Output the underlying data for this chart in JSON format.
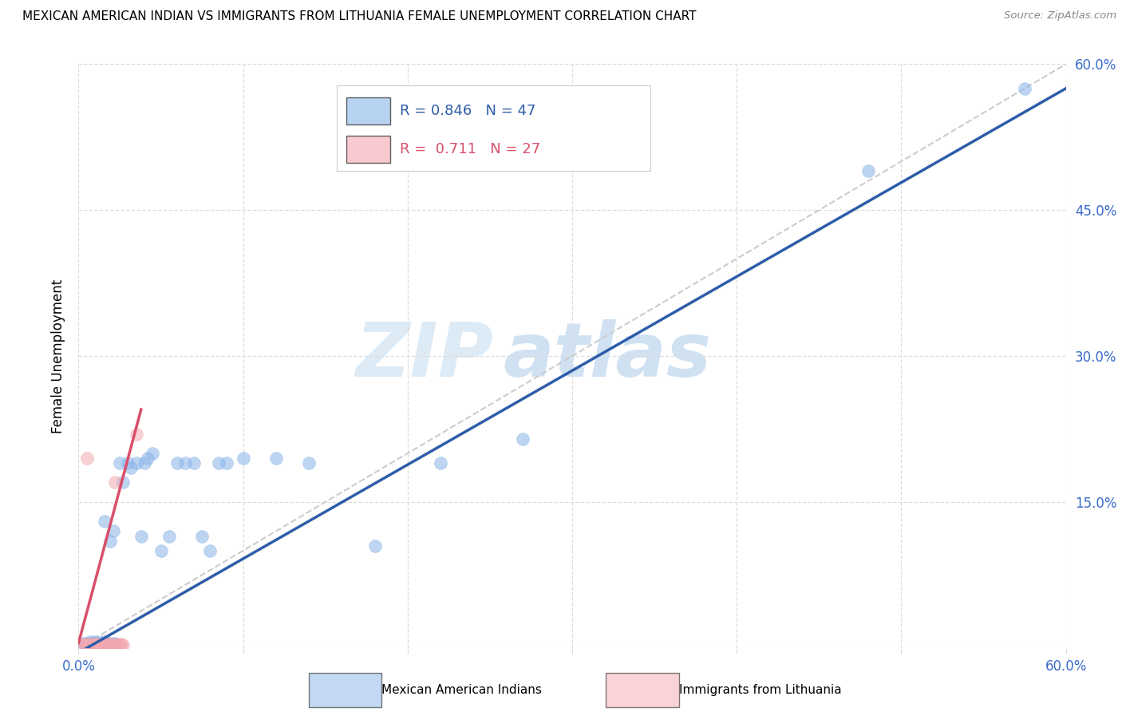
{
  "title": "MEXICAN AMERICAN INDIAN VS IMMIGRANTS FROM LITHUANIA FEMALE UNEMPLOYMENT CORRELATION CHART",
  "source": "Source: ZipAtlas.com",
  "ylabel": "Female Unemployment",
  "xlim": [
    0.0,
    0.6
  ],
  "ylim": [
    0.0,
    0.6
  ],
  "legend_blue_R": "0.846",
  "legend_blue_N": "47",
  "legend_pink_R": "0.711",
  "legend_pink_N": "27",
  "blue_color": "#89B4E8",
  "pink_color": "#F4A8B0",
  "blue_line_color": "#2E5DA8",
  "pink_line_color": "#D94F6A",
  "diagonal_color": "#CCCCCC",
  "watermark_zip": "ZIP",
  "watermark_atlas": "atlas",
  "blue_scatter_x": [
    0.003,
    0.004,
    0.005,
    0.006,
    0.007,
    0.008,
    0.009,
    0.01,
    0.01,
    0.012,
    0.013,
    0.014,
    0.015,
    0.015,
    0.016,
    0.017,
    0.018,
    0.019,
    0.02,
    0.021,
    0.022,
    0.025,
    0.027,
    0.03,
    0.032,
    0.035,
    0.038,
    0.04,
    0.042,
    0.045,
    0.05,
    0.055,
    0.06,
    0.065,
    0.07,
    0.075,
    0.08,
    0.085,
    0.09,
    0.1,
    0.12,
    0.14,
    0.18,
    0.22,
    0.27,
    0.48,
    0.575
  ],
  "blue_scatter_y": [
    0.005,
    0.003,
    0.005,
    0.004,
    0.006,
    0.005,
    0.004,
    0.006,
    0.005,
    0.005,
    0.004,
    0.005,
    0.006,
    0.005,
    0.13,
    0.005,
    0.005,
    0.11,
    0.005,
    0.12,
    0.005,
    0.19,
    0.17,
    0.19,
    0.185,
    0.19,
    0.115,
    0.19,
    0.195,
    0.2,
    0.1,
    0.115,
    0.19,
    0.19,
    0.19,
    0.115,
    0.1,
    0.19,
    0.19,
    0.195,
    0.195,
    0.19,
    0.105,
    0.19,
    0.215,
    0.49,
    0.575
  ],
  "pink_scatter_x": [
    0.003,
    0.004,
    0.005,
    0.006,
    0.007,
    0.008,
    0.009,
    0.01,
    0.011,
    0.012,
    0.013,
    0.014,
    0.015,
    0.016,
    0.017,
    0.018,
    0.019,
    0.02,
    0.021,
    0.022,
    0.023,
    0.024,
    0.025,
    0.026,
    0.027,
    0.035,
    0.005
  ],
  "pink_scatter_y": [
    0.003,
    0.004,
    0.004,
    0.003,
    0.004,
    0.003,
    0.004,
    0.004,
    0.003,
    0.004,
    0.003,
    0.004,
    0.003,
    0.004,
    0.003,
    0.004,
    0.003,
    0.004,
    0.003,
    0.17,
    0.003,
    0.004,
    0.003,
    0.004,
    0.003,
    0.22,
    0.195
  ],
  "blue_line_x0": 0.0,
  "blue_line_y0": -0.005,
  "blue_line_x1": 0.6,
  "blue_line_y1": 0.575,
  "pink_line_x0": 0.0,
  "pink_line_y0": 0.005,
  "pink_line_x1": 0.038,
  "pink_line_y1": 0.245,
  "grid_color": "#DDDDDD",
  "background_color": "#FFFFFF"
}
